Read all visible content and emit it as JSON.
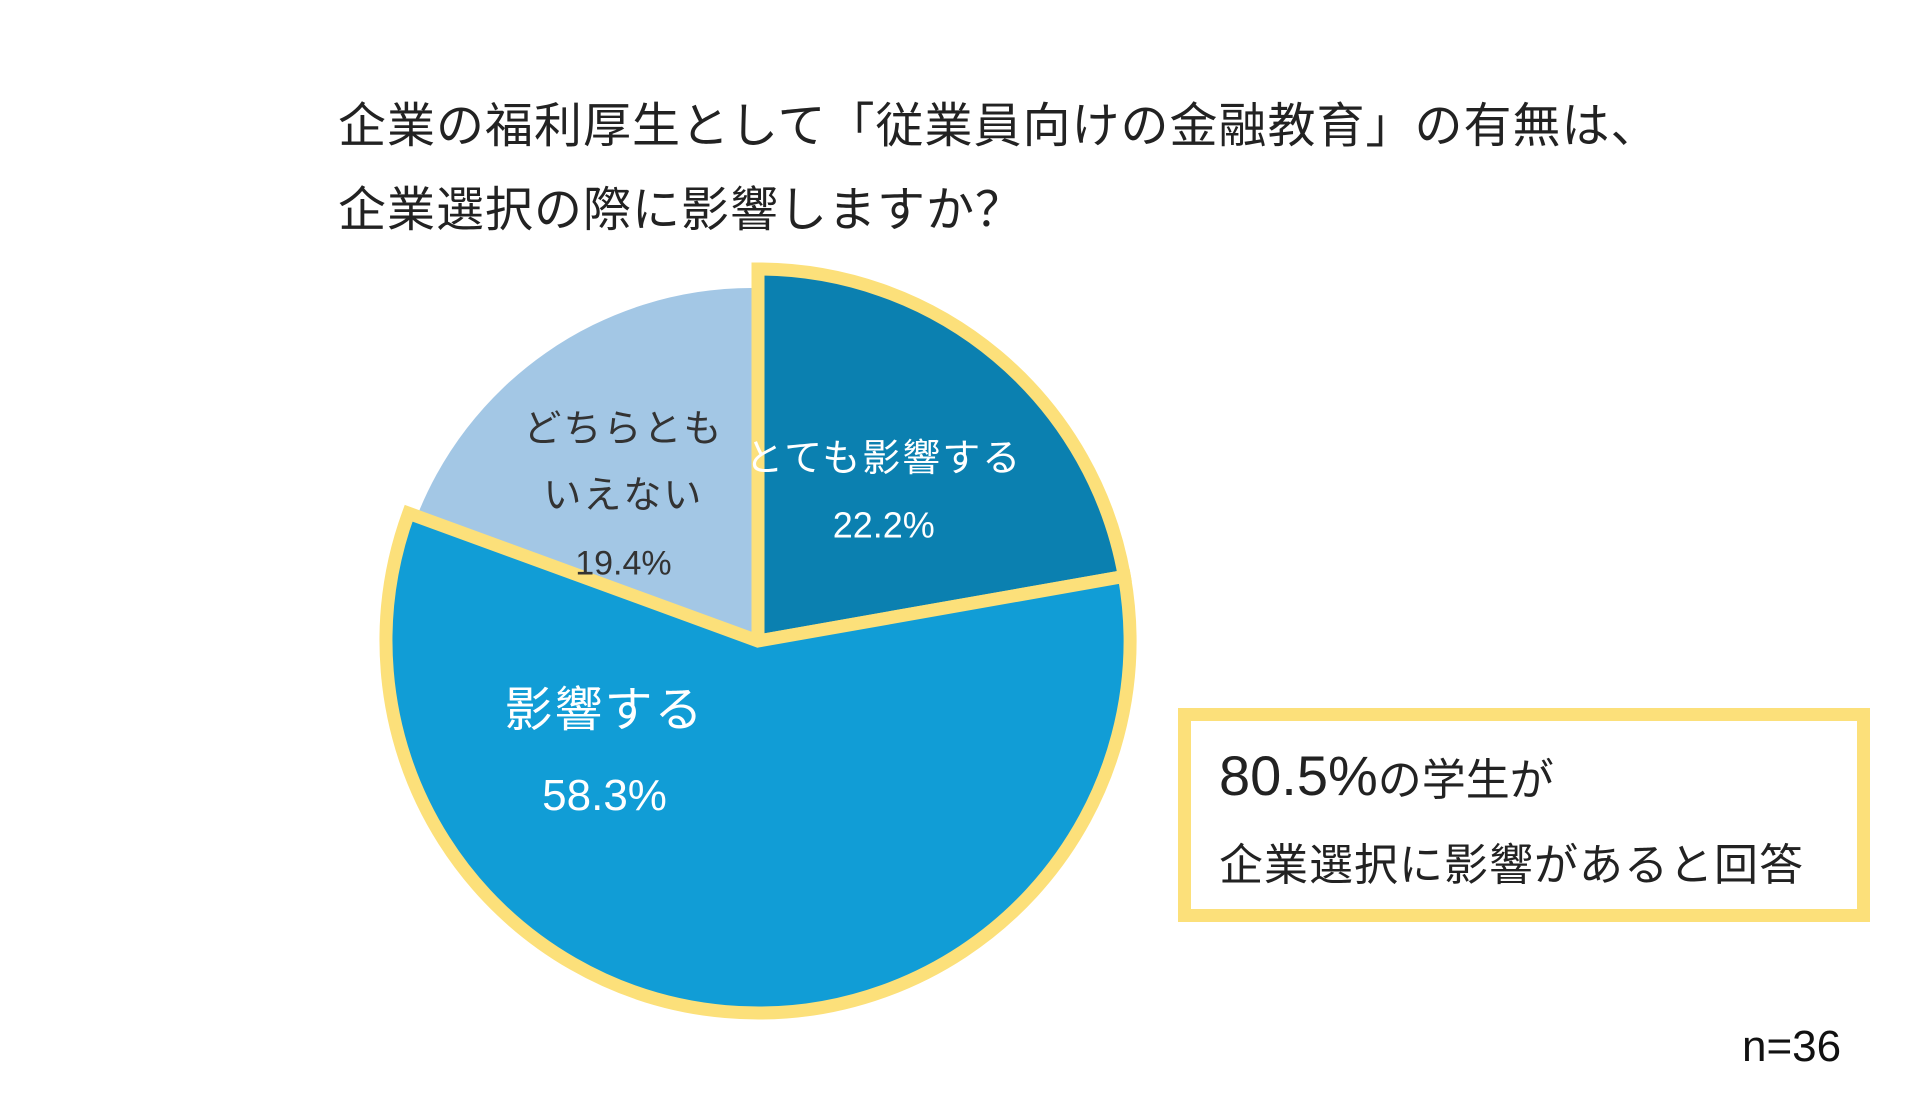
{
  "title_lines": [
    "企業の福利厚生として「従業員向けの金融教育」の有無は、",
    "企業選択の際に影響しますか？"
  ],
  "chart_data": {
    "type": "pie",
    "slices": [
      {
        "label_lines": [
          "とても影響する"
        ],
        "value": 22.2,
        "value_label": "22.2%",
        "color": "#0b80b0",
        "label_color": "#ffffff",
        "highlighted": true
      },
      {
        "label_lines": [
          "影響する"
        ],
        "value": 58.3,
        "value_label": "58.3%",
        "color": "#119dd6",
        "label_color": "#ffffff",
        "highlighted": true
      },
      {
        "label_lines": [
          "どちらとも",
          "いえない"
        ],
        "value": 19.4,
        "value_label": "19.4%",
        "color": "#a3c7e5",
        "label_color": "#333333",
        "highlighted": false
      }
    ],
    "start_angle": "12 o'clock",
    "direction": "clockwise",
    "highlight_color": "#fce07a"
  },
  "callout": {
    "percent": "80.5%",
    "line1_rest": "の学生が",
    "line2": "企業選択に影響があると回答",
    "border_color": "#fce07a"
  },
  "sample_size": "n=36"
}
